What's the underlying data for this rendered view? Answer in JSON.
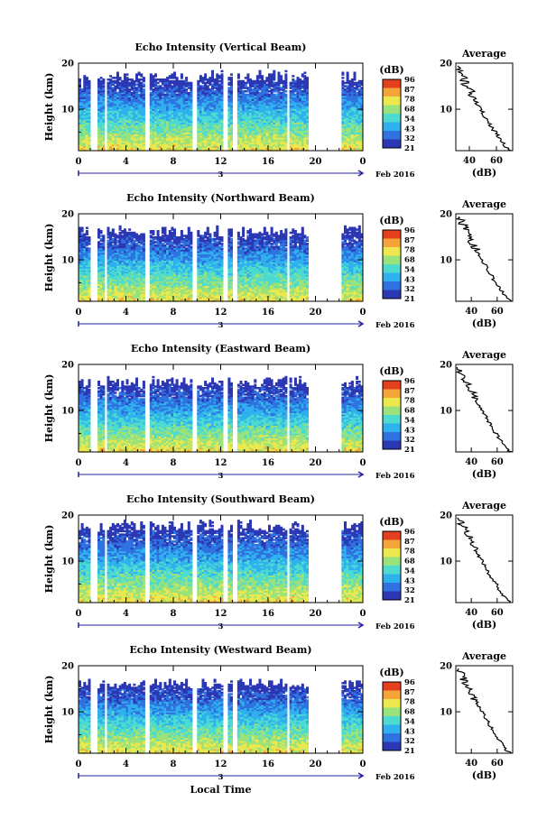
{
  "figure": {
    "time_axis_label": "Local Time",
    "date_label": "Feb 2016",
    "date_day": "3",
    "colorbar_title": "(dB)",
    "colorbar_ticks": [
      "96",
      "87",
      "78",
      "68",
      "54",
      "43",
      "32",
      "21"
    ],
    "height_label": "Height (km)",
    "average_title": "Average",
    "average_xlabel": "(dB)"
  },
  "colors": {
    "colormap": [
      "#2c37b4",
      "#2f72e0",
      "#2fb1ee",
      "#4ddbd0",
      "#9ae27b",
      "#ece84d",
      "#f5a43a",
      "#e4401d"
    ],
    "axis": "#000000",
    "time_arrow": "#2323a0"
  },
  "chart_data": [
    {
      "type": "heatmap",
      "title": "Echo Intensity (Vertical Beam)",
      "ylabel": "Height (km)",
      "xlabel": "Local Time",
      "x_ticks": [
        "0",
        "4",
        "8",
        "12",
        "16",
        "20",
        "0"
      ],
      "x_range_hours": [
        0,
        24
      ],
      "y_range_km": [
        1,
        20
      ],
      "y_ticks": [
        "20",
        "10"
      ],
      "colorbar_range_db": [
        21,
        96
      ],
      "data_gaps_hours": [
        [
          1.1,
          1.5
        ],
        [
          2.2,
          2.4
        ],
        [
          5.6,
          5.9
        ],
        [
          9.6,
          10.0
        ],
        [
          12.3,
          12.6
        ],
        [
          13.0,
          13.3
        ],
        [
          17.6,
          17.9
        ],
        [
          19.5,
          22.2
        ]
      ],
      "top_of_echo_km": 18.5,
      "average_profile": {
        "xlabel": "(dB)",
        "x_ticks": [
          "40",
          "60"
        ],
        "x_range_db": [
          30,
          72
        ],
        "y_ticks": [
          "20",
          "10"
        ],
        "y_range_km": [
          1,
          20
        ],
        "surface_db": 70,
        "top_db": 30
      }
    },
    {
      "type": "heatmap",
      "title": "Echo Intensity (Northward Beam)",
      "ylabel": "Height (km)",
      "x_ticks": [
        "0",
        "4",
        "8",
        "12",
        "16",
        "20",
        "0"
      ],
      "x_range_hours": [
        0,
        24
      ],
      "y_range_km": [
        1,
        20
      ],
      "y_ticks": [
        "20",
        "10"
      ],
      "colorbar_range_db": [
        21,
        96
      ],
      "data_gaps_hours": [
        [
          1.1,
          1.5
        ],
        [
          2.2,
          2.4
        ],
        [
          5.6,
          5.9
        ],
        [
          9.6,
          10.0
        ],
        [
          12.3,
          12.6
        ],
        [
          13.0,
          13.3
        ],
        [
          17.6,
          17.9
        ],
        [
          19.5,
          22.2
        ]
      ],
      "top_of_echo_km": 17.5,
      "average_profile": {
        "xlabel": "(dB)",
        "x_ticks": [
          "40",
          "60"
        ],
        "x_range_db": [
          28,
          72
        ],
        "y_ticks": [
          "20",
          "10"
        ],
        "y_range_km": [
          1,
          20
        ],
        "surface_db": 70,
        "top_db": 30
      }
    },
    {
      "type": "heatmap",
      "title": "Echo Intensity (Eastward Beam)",
      "ylabel": "Height (km)",
      "x_ticks": [
        "0",
        "4",
        "8",
        "12",
        "16",
        "20",
        "0"
      ],
      "x_range_hours": [
        0,
        24
      ],
      "y_range_km": [
        1,
        20
      ],
      "y_ticks": [
        "20",
        "10"
      ],
      "colorbar_range_db": [
        21,
        96
      ],
      "data_gaps_hours": [
        [
          1.1,
          1.5
        ],
        [
          2.2,
          2.4
        ],
        [
          5.6,
          5.9
        ],
        [
          9.6,
          10.0
        ],
        [
          12.3,
          12.6
        ],
        [
          13.0,
          13.3
        ],
        [
          17.6,
          17.9
        ],
        [
          19.5,
          22.2
        ]
      ],
      "top_of_echo_km": 17.5,
      "average_profile": {
        "xlabel": "(dB)",
        "x_ticks": [
          "40",
          "60"
        ],
        "x_range_db": [
          28,
          72
        ],
        "y_ticks": [
          "20",
          "10"
        ],
        "y_range_km": [
          1,
          20
        ],
        "surface_db": 70,
        "top_db": 30
      }
    },
    {
      "type": "heatmap",
      "title": "Echo Intensity (Southward Beam)",
      "ylabel": "Height (km)",
      "x_ticks": [
        "0",
        "4",
        "8",
        "12",
        "16",
        "20",
        "0"
      ],
      "x_range_hours": [
        0,
        24
      ],
      "y_range_km": [
        1,
        20
      ],
      "y_ticks": [
        "20",
        "10"
      ],
      "colorbar_range_db": [
        21,
        96
      ],
      "data_gaps_hours": [
        [
          1.1,
          1.5
        ],
        [
          2.2,
          2.4
        ],
        [
          5.6,
          5.9
        ],
        [
          9.6,
          10.0
        ],
        [
          12.3,
          12.6
        ],
        [
          13.0,
          13.3
        ],
        [
          17.6,
          17.9
        ],
        [
          19.5,
          22.2
        ]
      ],
      "top_of_echo_km": 19.0,
      "average_profile": {
        "xlabel": "(dB)",
        "x_ticks": [
          "40",
          "60"
        ],
        "x_range_db": [
          28,
          72
        ],
        "y_ticks": [
          "20",
          "10"
        ],
        "y_range_km": [
          1,
          20
        ],
        "surface_db": 70,
        "top_db": 30
      }
    },
    {
      "type": "heatmap",
      "title": "Echo Intensity (Westward Beam)",
      "ylabel": "Height (km)",
      "x_ticks": [
        "0",
        "4",
        "8",
        "12",
        "16",
        "20",
        "0"
      ],
      "x_range_hours": [
        0,
        24
      ],
      "y_range_km": [
        1,
        20
      ],
      "y_ticks": [
        "20",
        "10"
      ],
      "colorbar_range_db": [
        21,
        96
      ],
      "data_gaps_hours": [
        [
          1.1,
          1.5
        ],
        [
          2.2,
          2.4
        ],
        [
          5.6,
          5.9
        ],
        [
          9.6,
          10.0
        ],
        [
          12.3,
          12.6
        ],
        [
          13.0,
          13.3
        ],
        [
          17.6,
          17.9
        ],
        [
          19.5,
          22.2
        ]
      ],
      "top_of_echo_km": 17.5,
      "average_profile": {
        "xlabel": "(dB)",
        "x_ticks": [
          "40",
          "60"
        ],
        "x_range_db": [
          28,
          72
        ],
        "y_ticks": [
          "20",
          "10"
        ],
        "y_range_km": [
          1,
          20
        ],
        "surface_db": 70,
        "top_db": 30
      }
    }
  ]
}
